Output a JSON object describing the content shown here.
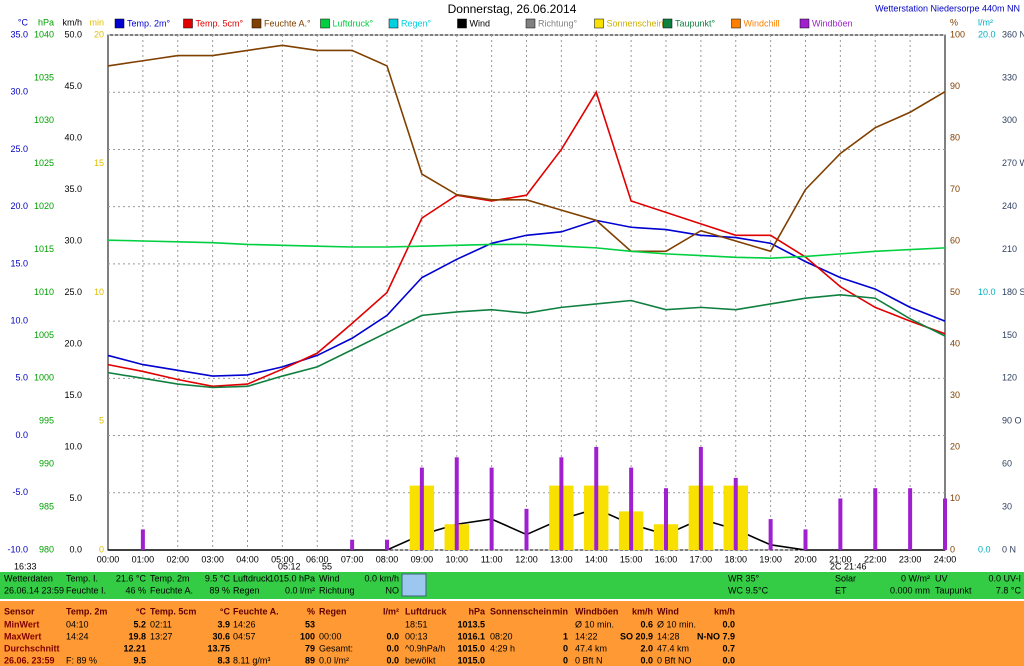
{
  "chart_data": {
    "type": "line",
    "title": "Donnerstag, 26.06.2014",
    "station": "Wetterstation Niedersorpe 440m NN",
    "grid": true,
    "categories": [
      "00:00",
      "01:00",
      "02:00",
      "03:00",
      "04:00",
      "05:00",
      "06:00",
      "07:00",
      "08:00",
      "09:00",
      "10:00",
      "11:00",
      "12:00",
      "13:00",
      "14:00",
      "15:00",
      "16:00",
      "17:00",
      "18:00",
      "19:00",
      "20:00",
      "21:00",
      "22:00",
      "23:00",
      "24:00"
    ],
    "axes": [
      {
        "unit": "°C",
        "side": "left",
        "color": "#0000c0",
        "lim": [
          -10,
          35
        ],
        "ticks": [
          {
            "value": 35,
            "label": "35.0"
          },
          {
            "value": 30,
            "label": "30.0"
          },
          {
            "value": 25,
            "label": "25.0"
          },
          {
            "value": 20,
            "label": "20.0"
          },
          {
            "value": 15,
            "label": "15.0"
          },
          {
            "value": 10,
            "label": "10.0"
          },
          {
            "value": 5,
            "label": "5.0"
          },
          {
            "value": 0,
            "label": "0.0"
          },
          {
            "value": -5,
            "label": "-5.0"
          },
          {
            "value": -10,
            "label": "-10.0"
          }
        ]
      },
      {
        "unit": "hPa",
        "side": "left",
        "color": "#00a000",
        "lim": [
          980,
          1040
        ],
        "ticks": [
          1040,
          1035,
          1030,
          1025,
          1020,
          1015,
          1010,
          1005,
          1000,
          995,
          990,
          985,
          980
        ]
      },
      {
        "unit": "km/h",
        "side": "left",
        "color": "#000000",
        "lim": [
          0,
          50
        ],
        "ticks": [
          {
            "value": 50,
            "label": "50.0"
          },
          {
            "value": 45,
            "label": "45.0"
          },
          {
            "value": 40,
            "label": "40.0"
          },
          {
            "value": 35,
            "label": "35.0"
          },
          {
            "value": 30,
            "label": "30.0"
          },
          {
            "value": 25,
            "label": "25.0"
          },
          {
            "value": 20,
            "label": "20.0"
          },
          {
            "value": 15,
            "label": "15.0"
          },
          {
            "value": 10,
            "label": "10.0"
          },
          {
            "value": 5,
            "label": "5.0"
          },
          {
            "value": 0,
            "label": "0.0"
          }
        ]
      },
      {
        "unit": "min",
        "side": "left",
        "color": "#e0c000",
        "lim": [
          0,
          20
        ],
        "ticks": [
          20,
          15,
          10,
          5,
          0
        ]
      },
      {
        "unit": "%",
        "side": "right",
        "color": "#804000",
        "lim": [
          0,
          100
        ],
        "ticks": [
          100,
          90,
          80,
          70,
          60,
          50,
          40,
          30,
          20,
          10,
          0
        ]
      },
      {
        "unit": "l/m²",
        "side": "right",
        "color": "#00b0c0",
        "lim": [
          0,
          20
        ],
        "ticks": [
          {
            "value": 20,
            "label": "20.0"
          },
          {
            "value": 10,
            "label": "10.0"
          },
          {
            "value": 0,
            "label": "0.0"
          }
        ]
      },
      {
        "side": "right",
        "color": "#304060",
        "lim": [
          0,
          360
        ],
        "ticks": [
          {
            "value": 360,
            "label": "360 N"
          },
          330,
          300,
          {
            "value": 270,
            "label": "270 W"
          },
          240,
          210,
          {
            "value": 180,
            "label": "180 S"
          },
          150,
          120,
          {
            "value": 90,
            "label": "90 O"
          },
          60,
          30,
          {
            "value": 0,
            "label": "0 N"
          }
        ]
      }
    ],
    "series": [
      {
        "name": "Temp. 2m°",
        "color": "#0000d0",
        "axis": 0,
        "style": "line",
        "values": [
          7.0,
          6.2,
          5.7,
          5.2,
          5.3,
          6.0,
          7.0,
          8.5,
          10.5,
          13.8,
          15.4,
          16.8,
          17.5,
          17.8,
          18.8,
          18.2,
          18.0,
          17.5,
          17.3,
          16.8,
          15.2,
          13.8,
          12.8,
          11.2,
          10.0
        ]
      },
      {
        "name": "Temp. 5cm°",
        "color": "#e00000",
        "axis": 0,
        "style": "line",
        "values": [
          6.2,
          5.6,
          4.9,
          4.3,
          4.5,
          5.8,
          7.2,
          9.8,
          12.5,
          19.0,
          21.0,
          20.5,
          21.0,
          25.0,
          30.0,
          20.5,
          19.5,
          18.5,
          17.5,
          17.5,
          15.6,
          13.0,
          11.2,
          10.0,
          8.9
        ]
      },
      {
        "name": "Feuchte A.°",
        "color": "#804000",
        "axis": 4,
        "style": "line",
        "values": [
          94,
          95,
          96,
          96,
          97,
          98,
          97,
          97,
          94,
          73,
          69,
          68,
          68,
          66,
          64,
          58,
          58,
          62,
          60,
          58,
          70,
          77,
          82,
          85,
          89
        ]
      },
      {
        "name": "Luftdruck°",
        "color": "#00d040",
        "axis": 1,
        "style": "line",
        "values": [
          1016.1,
          1016.0,
          1015.9,
          1015.8,
          1015.6,
          1015.5,
          1015.4,
          1015.3,
          1015.3,
          1015.4,
          1015.5,
          1015.6,
          1015.6,
          1015.4,
          1015.2,
          1014.8,
          1014.5,
          1014.3,
          1014.1,
          1014.0,
          1014.2,
          1014.5,
          1014.8,
          1015.0,
          1015.2
        ]
      },
      {
        "name": "Regen°",
        "color": "#00d0e0",
        "axis": 5
      },
      {
        "name": "Wind",
        "color": "#000000",
        "axis": 2,
        "style": "line",
        "values": [
          0,
          0,
          0,
          0,
          0,
          0,
          0,
          0,
          0,
          1.5,
          2.5,
          3,
          1.5,
          3,
          4,
          2.5,
          1.5,
          3,
          2,
          0.5,
          0,
          0,
          0,
          0,
          0
        ]
      },
      {
        "name": "Richtung°",
        "color": "#808080",
        "axis": 6
      },
      {
        "name": "Sonnenschein",
        "color": "#f8e000",
        "axis": 3,
        "style": "bar",
        "values": [
          0,
          0,
          0,
          0,
          0,
          0,
          0,
          0,
          0,
          2.5,
          1,
          0,
          0,
          2.5,
          2.5,
          1.5,
          1,
          2.5,
          2.5,
          0,
          0,
          0,
          0,
          0,
          0
        ]
      },
      {
        "name": "Taupunkt°",
        "color": "#108040",
        "axis": 0,
        "style": "line",
        "values": [
          5.5,
          5.0,
          4.5,
          4.2,
          4.3,
          5.2,
          6.0,
          7.5,
          9.0,
          10.5,
          10.8,
          11.0,
          10.7,
          11.2,
          11.5,
          11.8,
          11.0,
          11.2,
          11.0,
          11.5,
          12.0,
          12.3,
          12.0,
          10.2,
          8.7
        ]
      },
      {
        "name": "Windchill",
        "color": "#ff8000",
        "axis": 0
      },
      {
        "name": "Windböen",
        "color": "#a020d0",
        "axis": 2,
        "style": "bar",
        "values": [
          0,
          2,
          0,
          0,
          0,
          0,
          0,
          1,
          1,
          8,
          9,
          8,
          4,
          9,
          10,
          8,
          6,
          10,
          7,
          3,
          2,
          5,
          6,
          6,
          5
        ]
      }
    ],
    "footnotes": [
      "16:33",
      "05:12",
      "55",
      "2C 21:46"
    ]
  },
  "status": [
    [
      [
        "Wetterdaten"
      ],
      [
        "26.06.14 23:59"
      ]
    ],
    [
      [
        "Temp. I.",
        "21.6 °C"
      ],
      [
        "Feuchte I.",
        "46 %"
      ]
    ],
    [
      [
        "Temp. 2m",
        "9.5 °C"
      ],
      [
        "Feuchte A.",
        "89 %"
      ]
    ],
    [
      [
        "Luftdruck",
        "1015.0 hPa"
      ],
      [
        "Regen",
        "0.0 l/m²"
      ]
    ],
    [
      [
        "Wind",
        "0.0 km/h"
      ],
      [
        "Richtung",
        "NO"
      ]
    ],
    [
      [
        "WR 35°"
      ],
      [
        "WC 9.5°C"
      ]
    ],
    [
      [
        "Solar",
        "0 W/m²"
      ],
      [
        "ET",
        "0.000 mm"
      ]
    ],
    [
      [
        "UV",
        "0.0 UV-I"
      ],
      [
        "Taupunkt",
        "7.8 °C"
      ]
    ]
  ],
  "table": {
    "header": [
      [
        "Sensor"
      ],
      [
        "Temp. 2m",
        "°C"
      ],
      [
        "Temp. 5cm",
        "°C"
      ],
      [
        "Feuchte A.",
        "%"
      ],
      [
        "Regen",
        "l/m²"
      ],
      [
        "Luftdruck",
        "hPa"
      ],
      [
        "Sonnenschein",
        "min"
      ],
      [
        "Windböen",
        "km/h"
      ],
      [
        "Wind",
        "km/h"
      ]
    ],
    "rows": [
      [
        [
          "MinWert"
        ],
        [
          "04:10",
          "5.2"
        ],
        [
          "02:11",
          "3.9"
        ],
        [
          "14:26",
          "53"
        ],
        [],
        [
          "18:51",
          "1013.5"
        ],
        [],
        [
          "Ø 10 min.",
          "0.6"
        ],
        [
          "Ø 10 min.",
          "0.0"
        ]
      ],
      [
        [
          "MaxWert"
        ],
        [
          "14:24",
          "19.8"
        ],
        [
          "13:27",
          "30.6"
        ],
        [
          "04:57",
          "100"
        ],
        [
          "00:00",
          "0.0"
        ],
        [
          "00:13",
          "1016.1"
        ],
        [
          "08:20",
          "1"
        ],
        [
          "14:22",
          "SO 20.9"
        ],
        [
          "14:28",
          "N-NO 7.9"
        ]
      ],
      [
        [
          "Durchschnitt"
        ],
        [
          "12.21"
        ],
        [
          "13.75"
        ],
        [
          "79"
        ],
        [
          "Gesamt:",
          "0.0"
        ],
        [
          "^0.9hPa/h",
          "1015.0"
        ],
        [
          "4:29 h",
          "0"
        ],
        [
          "47.4 km",
          "2.0"
        ],
        [
          "47.4 km",
          "0.7"
        ]
      ],
      [
        [
          "26.06. 23:59"
        ],
        [
          "F: 89 %",
          "9.5"
        ],
        [
          "8.3"
        ],
        [
          "8.11 g/m³",
          "89"
        ],
        [
          "0.0 l/m²",
          "0.0"
        ],
        [
          "bewölkt",
          "1015.0"
        ],
        [
          "0"
        ],
        [
          "0 Bft N",
          "0.0"
        ],
        [
          "0 Bft NO",
          "0.0"
        ]
      ]
    ]
  }
}
